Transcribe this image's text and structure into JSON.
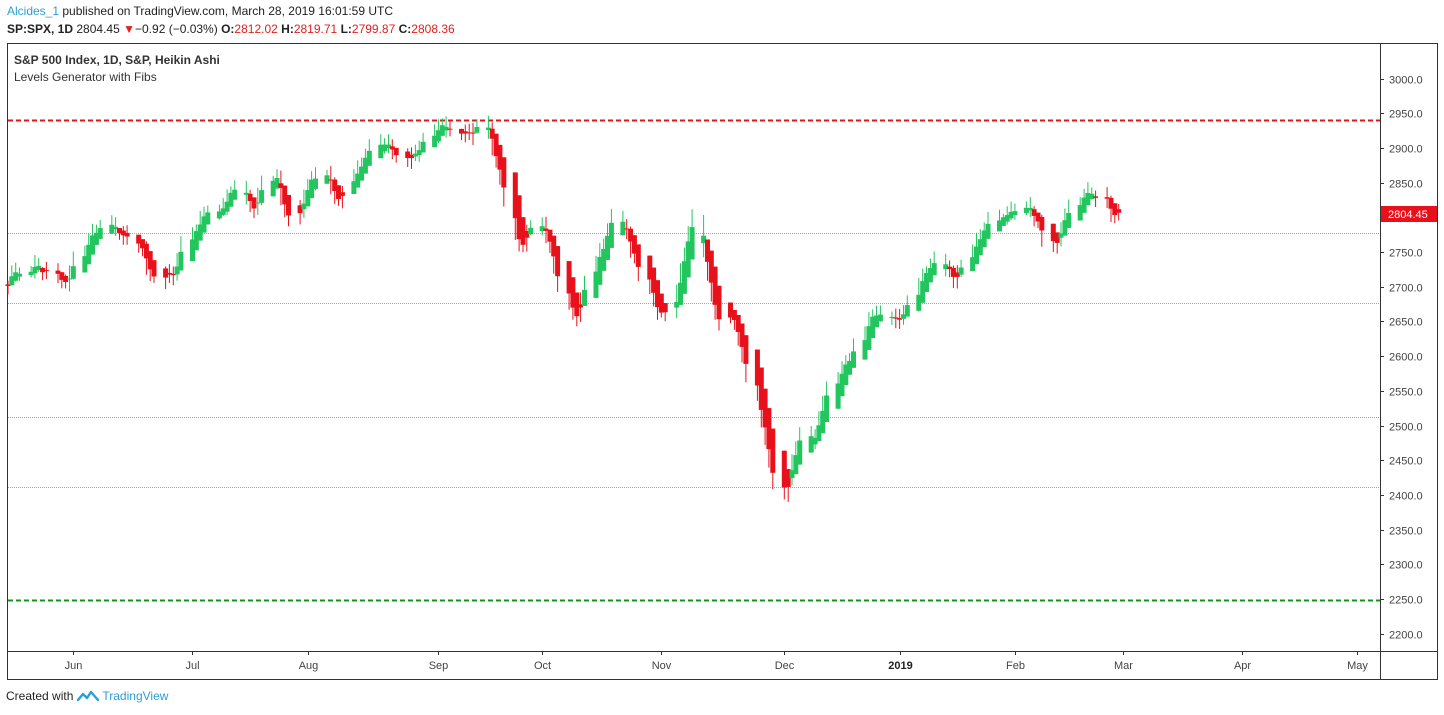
{
  "header": {
    "author": "Alcides_1",
    "published_text": " published on TradingView.com, March 28, 2019 16:01:59 UTC",
    "symbol": "SP:SPX, 1D",
    "last": "2804.45",
    "change_arrow": "▼",
    "change": "−0.92 (−0.03%)",
    "o_label": "O:",
    "o_value": "2812.02",
    "h_label": "H:",
    "h_value": "2819.71",
    "l_label": "L:",
    "l_value": "2799.87",
    "c_label": "C:",
    "c_value": "2808.36"
  },
  "legend": {
    "title": "S&P 500 Index, 1D, S&P, Heikin Ashi",
    "indicator": "Levels Generator with Fibs"
  },
  "footer": {
    "created_with": "Created with",
    "brand": "TradingView",
    "icon": "tradingview-logo-icon"
  },
  "colors": {
    "up": "#22c55e",
    "down": "#e8101a",
    "resistance": "#e8101a",
    "support": "#149414",
    "fib": "#4fc3d9",
    "price_tag": "#e8101a"
  },
  "chart_data": {
    "type": "candlestick",
    "style": "Heikin Ashi",
    "ylim": [
      2175,
      3050
    ],
    "y_ticks": [
      2200,
      2250,
      2300,
      2350,
      2400,
      2450,
      2500,
      2550,
      2600,
      2650,
      2700,
      2750,
      2800,
      2850,
      2900,
      2950,
      3000
    ],
    "x_range": [
      "2018-05-15",
      "2019-05-07"
    ],
    "x_ticks": [
      {
        "label": "Jun",
        "date": "2018-06-01",
        "bold": false
      },
      {
        "label": "Jul",
        "date": "2018-07-02",
        "bold": false
      },
      {
        "label": "Aug",
        "date": "2018-08-01",
        "bold": false
      },
      {
        "label": "Sep",
        "date": "2018-09-04",
        "bold": false
      },
      {
        "label": "Oct",
        "date": "2018-10-01",
        "bold": false
      },
      {
        "label": "Nov",
        "date": "2018-11-01",
        "bold": false
      },
      {
        "label": "Dec",
        "date": "2018-12-03",
        "bold": false
      },
      {
        "label": "2019",
        "date": "2019-01-02",
        "bold": true
      },
      {
        "label": "Feb",
        "date": "2019-02-01",
        "bold": false
      },
      {
        "label": "Mar",
        "date": "2019-03-01",
        "bold": false
      },
      {
        "label": "Apr",
        "date": "2019-04-01",
        "bold": false
      },
      {
        "label": "May",
        "date": "2019-05-01",
        "bold": false
      }
    ],
    "last_price": 2804.45,
    "horizontal_levels": [
      {
        "value": 2941,
        "style": "dashed",
        "role": "resistance"
      },
      {
        "value": 2778,
        "style": "dotted",
        "role": "fib"
      },
      {
        "value": 2676,
        "style": "dotted",
        "role": "fib"
      },
      {
        "value": 2513,
        "style": "dotted",
        "role": "fib"
      },
      {
        "value": 2411,
        "style": "dotted",
        "role": "fib"
      },
      {
        "value": 2248,
        "style": "dashed",
        "role": "support"
      }
    ],
    "closes_start": "2018-05-15",
    "closes": [
      2705,
      2720,
      2722,
      2720,
      2722,
      2733,
      2726,
      2722,
      2720,
      2715,
      2710,
      2703,
      2718,
      2740,
      2755,
      2765,
      2778,
      2782,
      2788,
      2788,
      2783,
      2777,
      2773,
      2765,
      2762,
      2752,
      2728,
      2720,
      2712,
      2718,
      2712,
      2722,
      2740,
      2760,
      2775,
      2785,
      2798,
      2803,
      2810,
      2810,
      2815,
      2830,
      2840,
      2842,
      2830,
      2815,
      2812,
      2830,
      2850,
      2855,
      2858,
      2830,
      2805,
      2800,
      2812,
      2830,
      2850,
      2855,
      2860,
      2862,
      2845,
      2830,
      2825,
      2840,
      2858,
      2870,
      2880,
      2890,
      2900,
      2910,
      2905,
      2900,
      2895,
      2890,
      2880,
      2888,
      2895,
      2905,
      2910,
      2922,
      2935,
      2930,
      2928,
      2925,
      2922,
      2920,
      2918,
      2930,
      2932,
      2925,
      2900,
      2880,
      2860,
      2820,
      2780,
      2760,
      2760,
      2780,
      2790,
      2788,
      2770,
      2760,
      2730,
      2700,
      2680,
      2658,
      2660,
      2680,
      2710,
      2735,
      2750,
      2760,
      2785,
      2800,
      2790,
      2775,
      2755,
      2740,
      2720,
      2700,
      2680,
      2665,
      2660,
      2665,
      2690,
      2725,
      2750,
      2775,
      2800,
      2750,
      2720,
      2690,
      2660,
      2650,
      2655,
      2650,
      2625,
      2600,
      2575,
      2540,
      2510,
      2480,
      2450,
      2420,
      2400,
      2420,
      2450,
      2470,
      2485,
      2480,
      2490,
      2510,
      2530,
      2555,
      2570,
      2580,
      2590,
      2600,
      2615,
      2630,
      2655,
      2660,
      2660,
      2655,
      2660,
      2650,
      2655,
      2665,
      2680,
      2700,
      2715,
      2725,
      2730,
      2738,
      2728,
      2720,
      2710,
      2720,
      2735,
      2750,
      2765,
      2775,
      2785,
      2795,
      2800,
      2800,
      2805,
      2810,
      2812,
      2815,
      2808,
      2800,
      2790,
      2770,
      2760,
      2770,
      2785,
      2800,
      2815,
      2825,
      2830,
      2838,
      2832,
      2828,
      2820,
      2805,
      2808,
      2804
    ]
  }
}
